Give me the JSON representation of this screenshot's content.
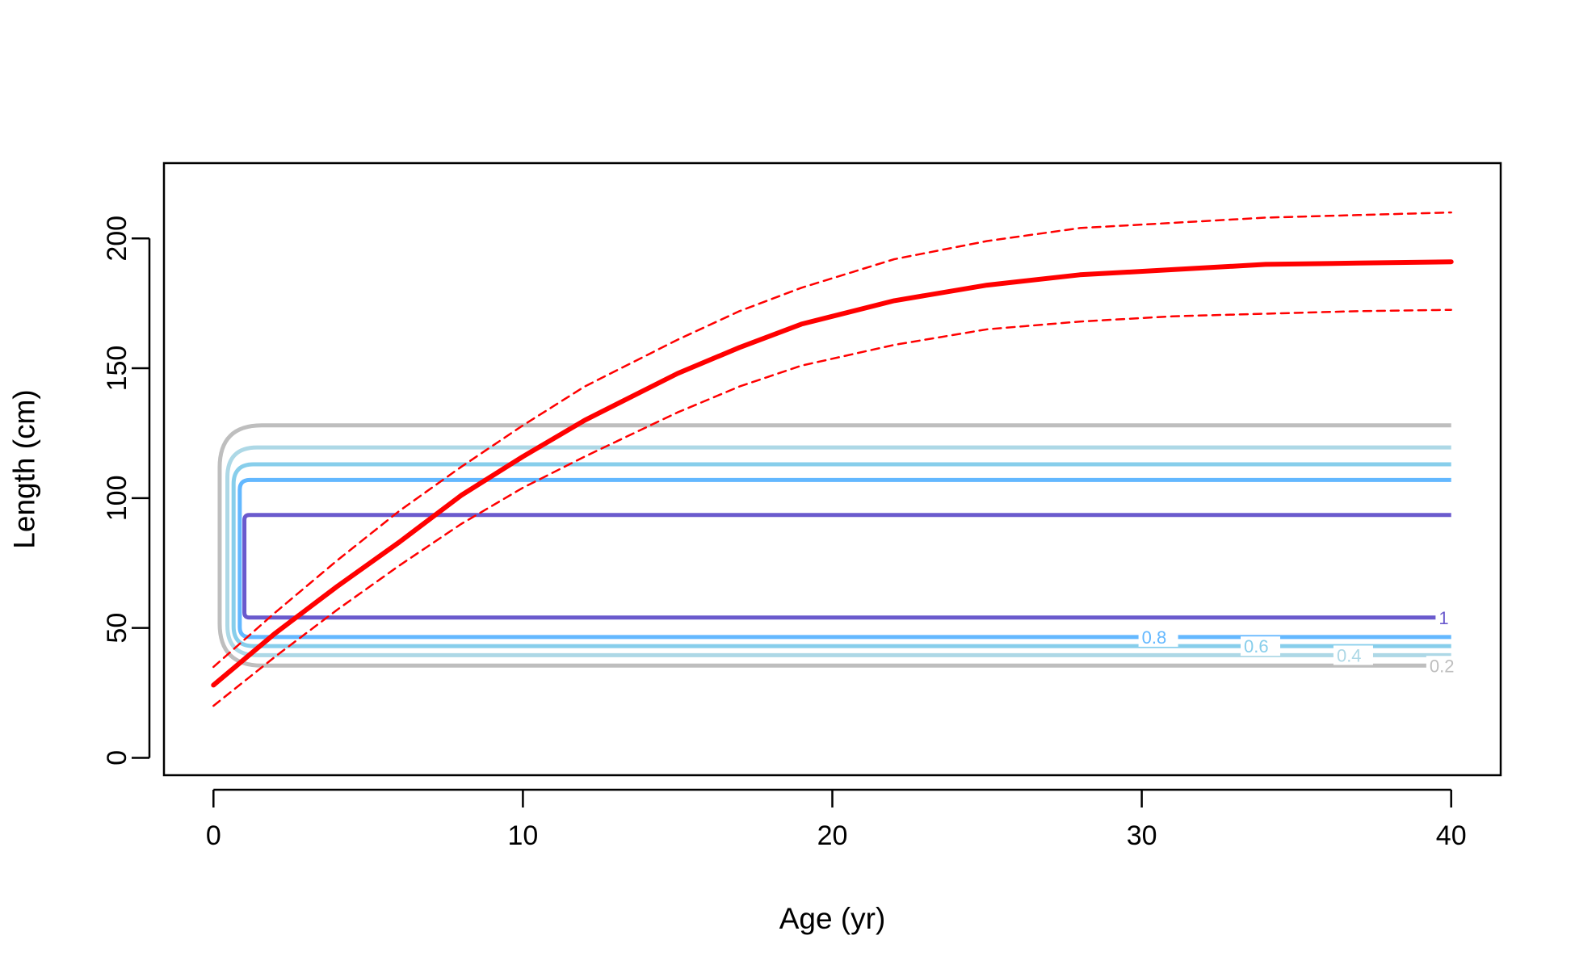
{
  "chart_data": {
    "type": "line",
    "title": "",
    "xlabel": "Age (yr)",
    "ylabel": "Length (cm)",
    "xlim": [
      -1.6,
      41.6
    ],
    "ylim": [
      -6.7,
      229
    ],
    "xticks": [
      0,
      10,
      20,
      30,
      40
    ],
    "yticks": [
      0,
      50,
      100,
      150,
      200
    ],
    "grid": false,
    "legend": "none",
    "series": [
      {
        "role": "mean",
        "color": "#ff0000",
        "style": "solid",
        "x": [
          0,
          2,
          4,
          6,
          8,
          10,
          12,
          15,
          17,
          19,
          22,
          25,
          28,
          31,
          34,
          37,
          40
        ],
        "y": [
          28,
          48,
          66,
          83,
          101,
          116,
          130,
          148,
          158,
          167,
          176,
          182,
          186,
          188,
          190,
          190.5,
          191
        ]
      },
      {
        "role": "upper",
        "color": "#ff0000",
        "style": "dashed",
        "x": [
          0,
          2,
          4,
          6,
          8,
          10,
          12,
          15,
          17,
          19,
          22,
          25,
          28,
          31,
          34,
          37,
          40
        ],
        "y": [
          35,
          56,
          76,
          95,
          112,
          128,
          143,
          161,
          172,
          181,
          192,
          199,
          204,
          206,
          208,
          209,
          210
        ]
      },
      {
        "role": "lower",
        "color": "#ff0000",
        "style": "dashed",
        "x": [
          0,
          2,
          4,
          6,
          8,
          10,
          12,
          15,
          17,
          19,
          22,
          25,
          28,
          31,
          34,
          37,
          40
        ],
        "y": [
          20,
          39,
          57,
          74,
          90,
          104,
          116,
          133,
          143,
          151,
          159,
          165,
          168,
          170,
          171,
          172,
          172.5
        ]
      }
    ],
    "contours": [
      {
        "level": "0.2",
        "color": "#bebebe",
        "low": 35.5,
        "high": 128,
        "xleft": 0.2
      },
      {
        "level": "0.4",
        "color": "#add8e6",
        "low": 39.5,
        "high": 119.5,
        "xleft": 0.45
      },
      {
        "level": "0.6",
        "color": "#87ceeb",
        "low": 43,
        "high": 113,
        "xleft": 0.65
      },
      {
        "level": "0.8",
        "color": "#63b8ff",
        "low": 46.5,
        "high": 107,
        "xleft": 0.85
      },
      {
        "level": "1",
        "color": "#6a5acd",
        "low": 54,
        "high": 93.5,
        "xleft": 1.0
      }
    ]
  }
}
